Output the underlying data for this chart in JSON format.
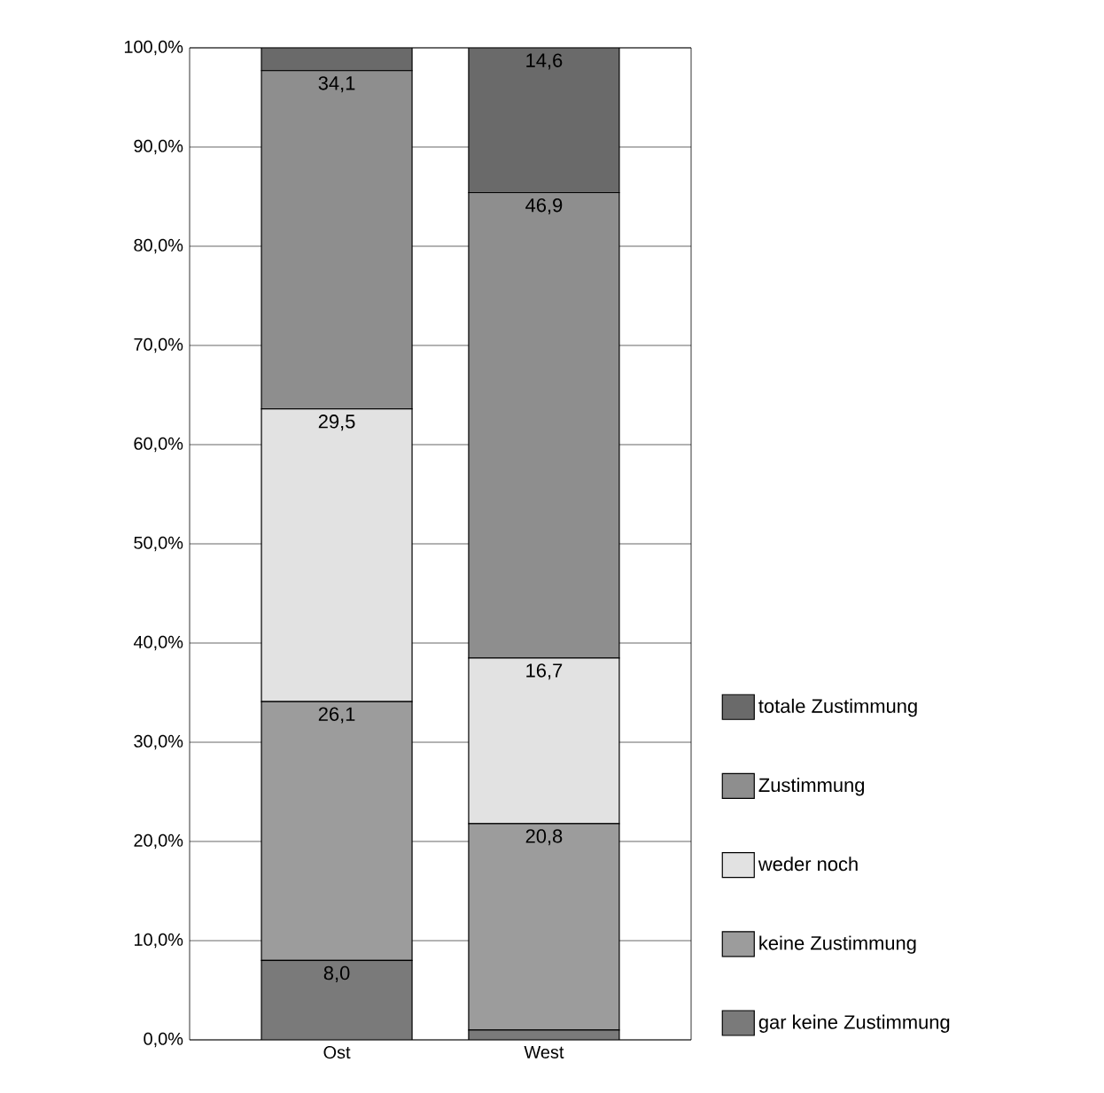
{
  "chart_data": {
    "type": "bar",
    "stacked": true,
    "categories": [
      "Ost",
      "West"
    ],
    "series": [
      {
        "name": "gar keine Zustimmung",
        "color": "#7a7a7a",
        "values": [
          8.0,
          1.0
        ],
        "value_labels": [
          "8,0",
          null
        ]
      },
      {
        "name": "keine Zustimmung",
        "color": "#9c9c9c",
        "values": [
          26.1,
          20.8
        ],
        "value_labels": [
          "26,1",
          "20,8"
        ]
      },
      {
        "name": "weder noch",
        "color": "#e2e2e2",
        "values": [
          29.5,
          16.7
        ],
        "value_labels": [
          "29,5",
          "16,7"
        ]
      },
      {
        "name": "Zustimmung",
        "color": "#8e8e8e",
        "values": [
          34.1,
          46.9
        ],
        "value_labels": [
          "34,1",
          "46,9"
        ]
      },
      {
        "name": "totale Zustimmung",
        "color": "#6a6a6a",
        "values": [
          2.3,
          14.6
        ],
        "value_labels": [
          null,
          "14,6"
        ]
      }
    ],
    "ylim": [
      0,
      100
    ],
    "yticks": [
      {
        "value": 0,
        "label": "0,0%"
      },
      {
        "value": 10,
        "label": "10,0%"
      },
      {
        "value": 20,
        "label": "20,0%"
      },
      {
        "value": 30,
        "label": "30,0%"
      },
      {
        "value": 40,
        "label": "40,0%"
      },
      {
        "value": 50,
        "label": "50,0%"
      },
      {
        "value": 60,
        "label": "60,0%"
      },
      {
        "value": 70,
        "label": "70,0%"
      },
      {
        "value": 80,
        "label": "80,0%"
      },
      {
        "value": 90,
        "label": "90,0%"
      },
      {
        "value": 100,
        "label": "100,0%"
      }
    ],
    "grid": "y",
    "legend": "right"
  }
}
